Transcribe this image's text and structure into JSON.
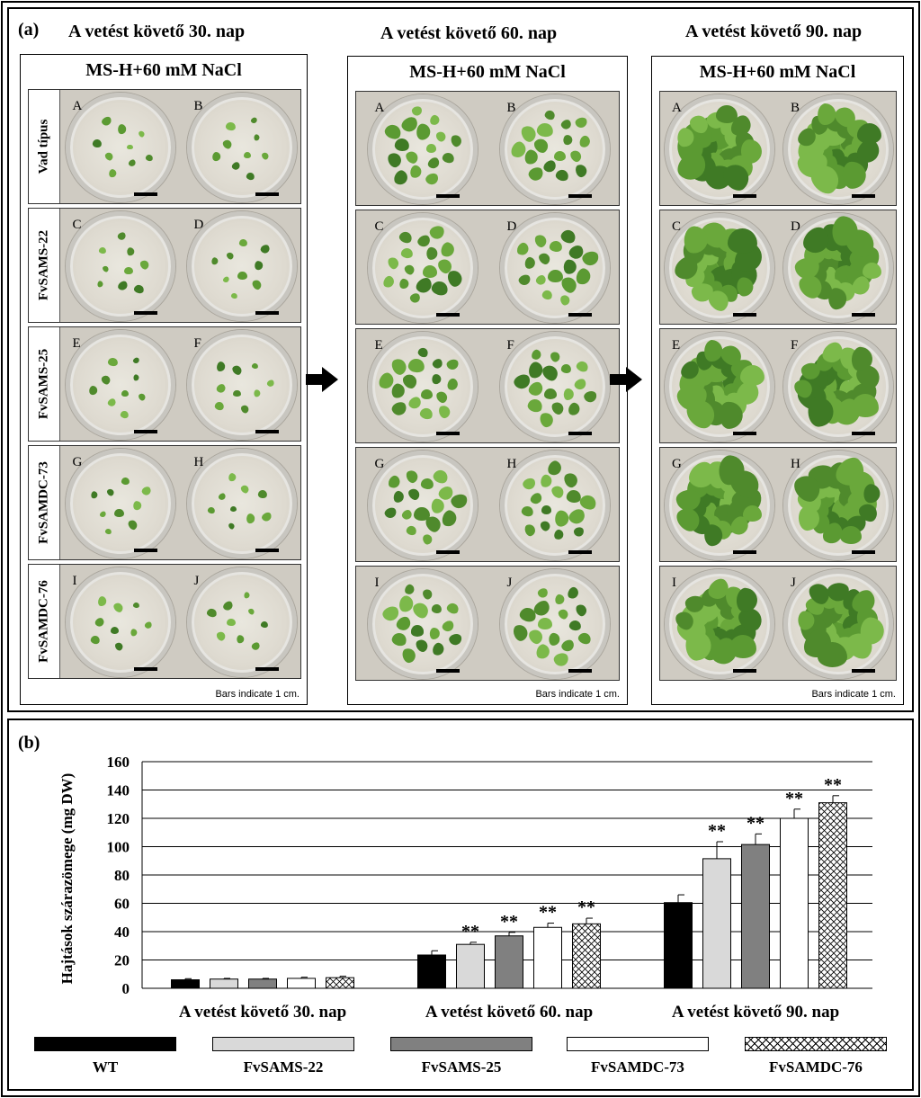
{
  "panel_a": {
    "label": "(a)",
    "day_headings": [
      "A vetést követő 30. nap",
      "A vetést követő 60. nap",
      "A vetést követő 90. nap"
    ],
    "medium": "MS-H+60 mM NaCl",
    "bars_note": "Bars indicate 1 cm.",
    "row_labels": [
      "Vad típus",
      "FvSAMS-22",
      "FvSAMS-25",
      "FvSAMDC-73",
      "FvSAMDC-76"
    ],
    "dish_letters": [
      [
        "A",
        "B"
      ],
      [
        "C",
        "D"
      ],
      [
        "E",
        "F"
      ],
      [
        "G",
        "H"
      ],
      [
        "I",
        "J"
      ]
    ],
    "arrow_icon": "right-arrow-icon"
  },
  "panel_b": {
    "label": "(b)"
  },
  "chart_data": {
    "type": "bar",
    "ylabel": "Hajtások szárazömege (mg DW)",
    "xlabel": "",
    "ylim": [
      0,
      160
    ],
    "yticks": [
      0,
      20,
      40,
      60,
      80,
      100,
      120,
      140,
      160
    ],
    "categories": [
      "A vetést követő 30. nap",
      "A vetést követő 60. nap",
      "A vetést követő 90. nap"
    ],
    "grid": true,
    "legend_position": "bottom",
    "series": [
      {
        "name": "WT",
        "values": [
          6,
          23.5,
          60.5
        ],
        "errors": [
          0.8,
          3,
          5.5
        ],
        "significance": [
          "",
          "",
          ""
        ],
        "fill": "#000000"
      },
      {
        "name": "FvSAMS-22",
        "values": [
          6.5,
          31,
          91.5
        ],
        "errors": [
          0.5,
          1.5,
          12
        ],
        "significance": [
          "",
          "**",
          "**"
        ],
        "fill": "#d9d9d9"
      },
      {
        "name": "FvSAMS-25",
        "values": [
          6.5,
          37,
          101.5
        ],
        "errors": [
          0.5,
          2.5,
          7.5
        ],
        "significance": [
          "",
          "**",
          "**"
        ],
        "fill": "#808080"
      },
      {
        "name": "FvSAMDC-73",
        "values": [
          7,
          43,
          120
        ],
        "errors": [
          0.8,
          3,
          6.5
        ],
        "significance": [
          "",
          "**",
          "**"
        ],
        "fill": "#ffffff"
      },
      {
        "name": "FvSAMDC-76",
        "values": [
          7.5,
          45.5,
          131
        ],
        "errors": [
          1,
          4,
          5
        ],
        "significance": [
          "",
          "**",
          "**"
        ],
        "fill": "crosshatch"
      }
    ]
  }
}
